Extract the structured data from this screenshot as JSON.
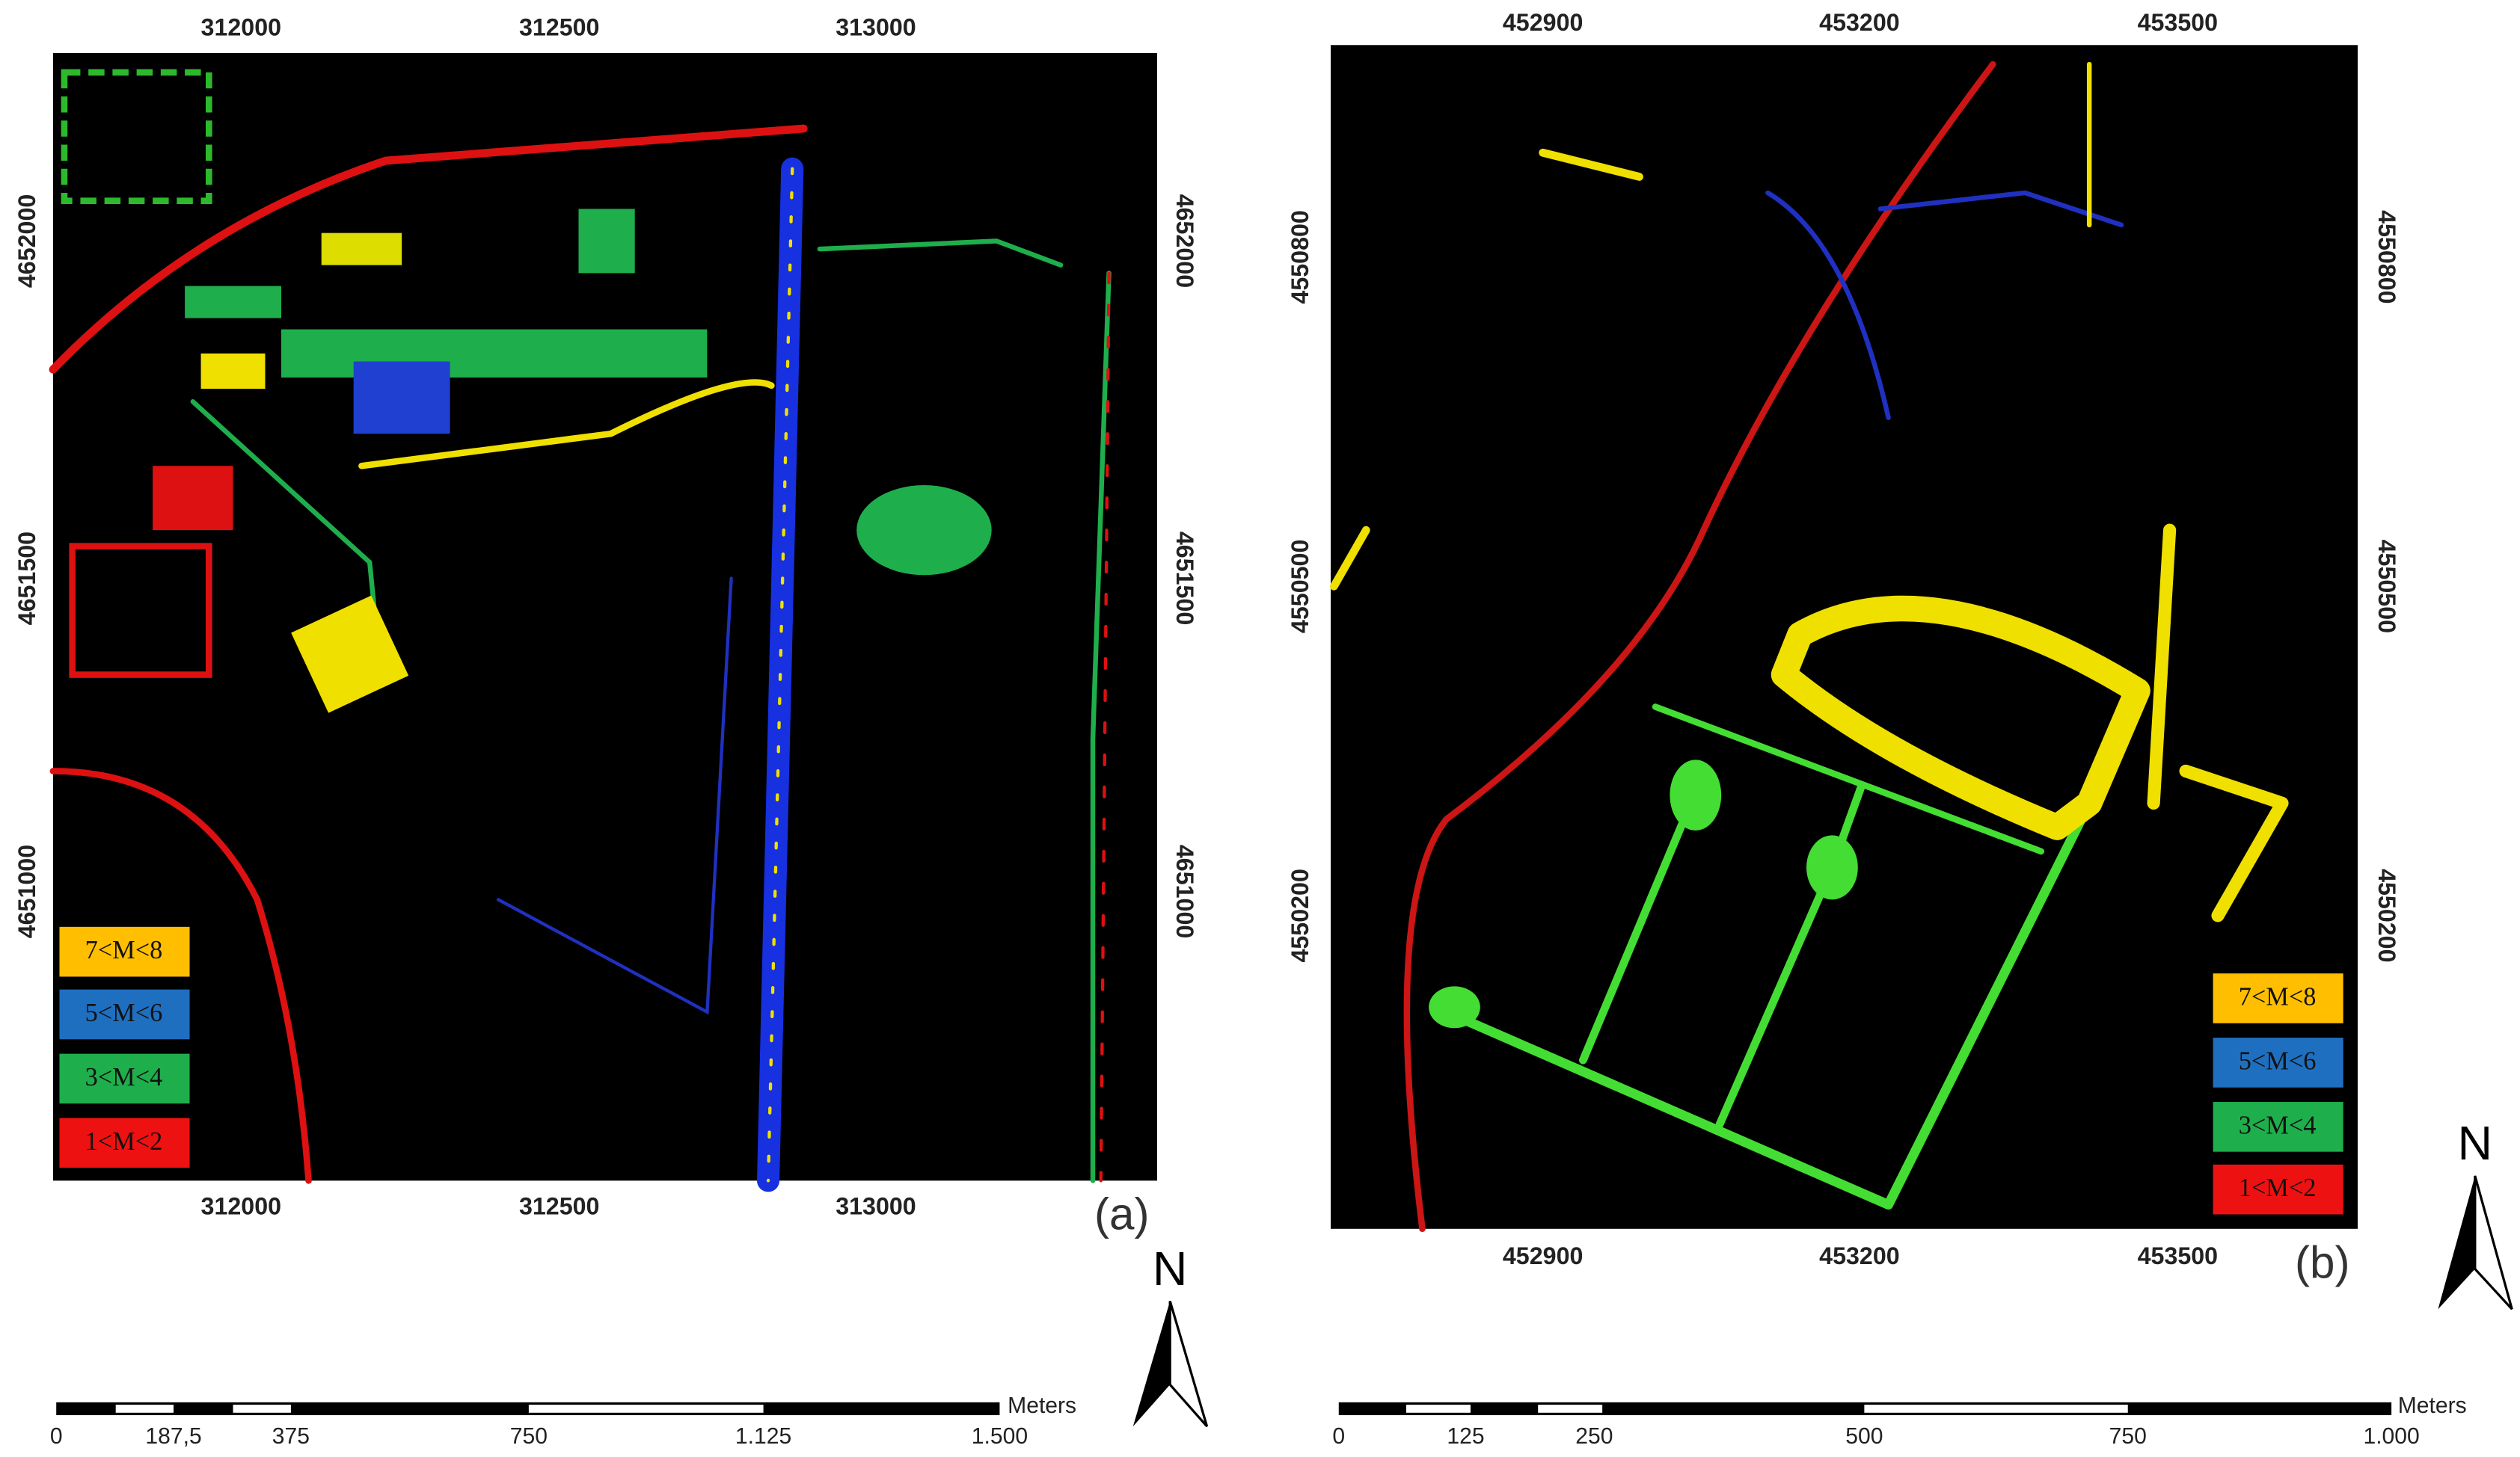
{
  "panels": [
    {
      "label": "(a)",
      "x_ticks": [
        "312000",
        "312500",
        "313000"
      ],
      "y_ticks": [
        "4652000",
        "4651500",
        "4651000"
      ],
      "legend": [
        {
          "label": "7<M<8",
          "color": "#ffbf00"
        },
        {
          "label": "5<M<6",
          "color": "#1f6fc0"
        },
        {
          "label": "3<M<4",
          "color": "#1fae4c"
        },
        {
          "label": "1<M<2",
          "color": "#ee1111"
        }
      ],
      "north": "N",
      "scale_bar": {
        "labels": [
          "0",
          "187,5",
          "375",
          "750",
          "1.125",
          "1.500"
        ],
        "unit": "Meters"
      }
    },
    {
      "label": "(b)",
      "x_ticks": [
        "452900",
        "453200",
        "453500"
      ],
      "y_ticks": [
        "4550800",
        "4550500",
        "4550200"
      ],
      "legend": [
        {
          "label": "7<M<8",
          "color": "#ffbf00"
        },
        {
          "label": "5<M<6",
          "color": "#1f6fc0"
        },
        {
          "label": "3<M<4",
          "color": "#1fae4c"
        },
        {
          "label": "1<M<2",
          "color": "#ee1111"
        }
      ],
      "north": "N",
      "scale_bar": {
        "labels": [
          "0",
          "125",
          "250",
          "500",
          "750",
          "1.000"
        ],
        "unit": "Meters"
      }
    }
  ]
}
